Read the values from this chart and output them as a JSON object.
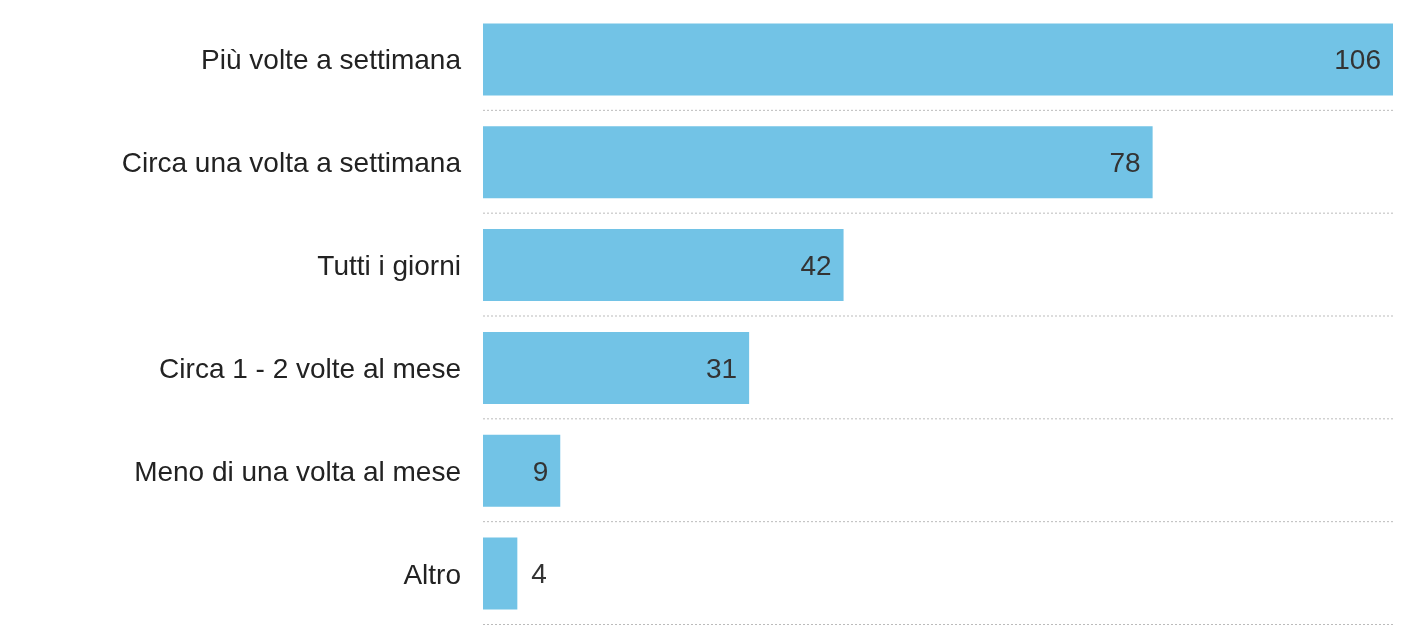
{
  "chart_data": {
    "type": "bar",
    "orientation": "horizontal",
    "categories": [
      "Più volte a settimana",
      "Circa una volta a settimana",
      "Tutti i giorni",
      "Circa 1 - 2 volte al mese",
      "Meno di una volta al mese",
      "Altro"
    ],
    "values": [
      106,
      78,
      42,
      31,
      9,
      4
    ],
    "color": "#72c3e6",
    "data_labels": true,
    "grid": "y"
  }
}
